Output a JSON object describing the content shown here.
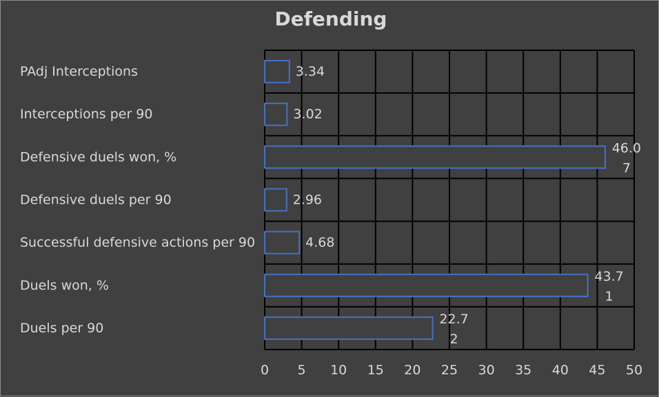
{
  "chart_data": {
    "type": "bar",
    "orientation": "horizontal",
    "title": "Defending",
    "xlabel": "",
    "ylabel": "",
    "categories": [
      "PAdj Interceptions",
      "Interceptions per 90",
      "Defensive duels won, %",
      "Defensive duels per 90",
      "Successful defensive actions per 90",
      "Duels won, %",
      "Duels per 90"
    ],
    "values": [
      3.34,
      3.02,
      46.07,
      2.96,
      4.68,
      43.71,
      22.72
    ],
    "data_labels": [
      [
        "3.34"
      ],
      [
        "3.02"
      ],
      [
        "46.0",
        "7"
      ],
      [
        "2.96"
      ],
      [
        "4.68"
      ],
      [
        "43.7",
        "1"
      ],
      [
        "22.7",
        "2"
      ]
    ],
    "xlim": [
      0,
      50
    ],
    "xticks": [
      0,
      5,
      10,
      15,
      20,
      25,
      30,
      35,
      40,
      45,
      50
    ],
    "grid": "vertical and horizontal",
    "legend": "none",
    "colors": {
      "background": "#404040",
      "bar_fill": "#404040",
      "bar_edge": "#4472c4",
      "gridline": "#000000",
      "text": "#d9d9d9"
    }
  }
}
